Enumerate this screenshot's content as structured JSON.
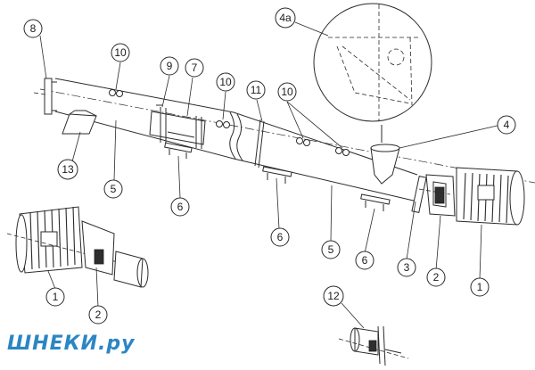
{
  "callouts": {
    "c8": "8",
    "c10a": "10",
    "c9": "9",
    "c7": "7",
    "c10b": "10",
    "c11": "11",
    "c10c": "10",
    "c4a": "4a",
    "c4": "4",
    "c13": "13",
    "c5a": "5",
    "c6a": "6",
    "c6b": "6",
    "c5b": "5",
    "c6c": "6",
    "c3": "3",
    "c2a": "2",
    "c1a": "1",
    "c1b": "1",
    "c2b": "2",
    "c12": "12"
  },
  "watermark": "ШНЕКИ.ру",
  "colors": {
    "line": "#2a2a2a",
    "watermark": "#2b86c5",
    "background": "#ffffff"
  }
}
